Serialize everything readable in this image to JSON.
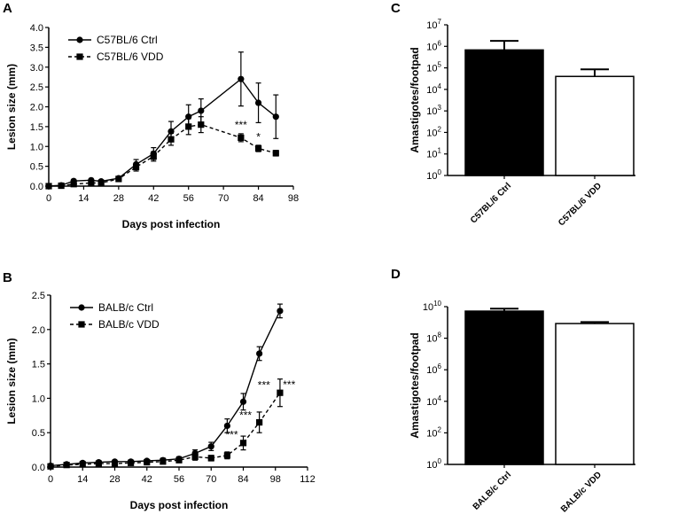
{
  "panels": {
    "A": "A",
    "B": "B",
    "C": "C",
    "D": "D"
  },
  "colors": {
    "axis": "#000000",
    "fill_ctrl": "#000000",
    "fill_vdd": "#ffffff"
  },
  "chart_data": [
    {
      "id": "A",
      "type": "line",
      "xlabel": "Days post infection",
      "ylabel": "Lesion size (mm)",
      "xlim": [
        0,
        98
      ],
      "ylim": [
        0,
        4.0
      ],
      "xticks": [
        0,
        14,
        28,
        42,
        56,
        70,
        84,
        98
      ],
      "yticks": [
        0.0,
        0.5,
        1.0,
        1.5,
        2.0,
        2.5,
        3.0,
        3.5,
        4.0
      ],
      "ytick_labels": [
        "0.0",
        "0.5",
        "1.0",
        "1.5",
        "2.0",
        "2.5",
        "3.0",
        "3.5",
        "4.0"
      ],
      "legend_position": "top-left",
      "series": [
        {
          "name": "C57BL/6 Ctrl",
          "marker": "circle",
          "dash": false,
          "x": [
            0,
            5,
            10,
            17,
            21,
            28,
            35,
            42,
            49,
            56,
            61,
            77,
            84,
            91
          ],
          "y": [
            0.0,
            0.02,
            0.13,
            0.15,
            0.12,
            0.2,
            0.55,
            0.82,
            1.38,
            1.75,
            1.9,
            2.7,
            2.1,
            1.75
          ],
          "err": [
            0.02,
            0.02,
            0.03,
            0.03,
            0.03,
            0.04,
            0.12,
            0.15,
            0.25,
            0.3,
            0.3,
            0.68,
            0.5,
            0.55
          ]
        },
        {
          "name": "C57BL/6 VDD",
          "marker": "square",
          "dash": true,
          "x": [
            0,
            5,
            10,
            17,
            21,
            28,
            35,
            42,
            49,
            56,
            61,
            77,
            84,
            91
          ],
          "y": [
            0.0,
            0.01,
            0.05,
            0.08,
            0.08,
            0.18,
            0.48,
            0.75,
            1.18,
            1.5,
            1.55,
            1.22,
            0.95,
            0.83
          ],
          "err": [
            0.02,
            0.02,
            0.03,
            0.03,
            0.03,
            0.04,
            0.1,
            0.12,
            0.15,
            0.2,
            0.2,
            0.1,
            0.08,
            0.07
          ]
        }
      ],
      "annotations": [
        {
          "text": "***",
          "x": 77,
          "y": 1.45
        },
        {
          "text": "*",
          "x": 84,
          "y": 1.15
        }
      ]
    },
    {
      "id": "B",
      "type": "line",
      "xlabel": "Days post infection",
      "ylabel": "Lesion size (mm)",
      "xlim": [
        0,
        112
      ],
      "ylim": [
        0,
        2.5
      ],
      "xticks": [
        0,
        14,
        28,
        42,
        56,
        70,
        84,
        98,
        112
      ],
      "yticks": [
        0.0,
        0.5,
        1.0,
        1.5,
        2.0,
        2.5
      ],
      "ytick_labels": [
        "0.0",
        "0.5",
        "1.0",
        "1.5",
        "2.0",
        "2.5"
      ],
      "legend_position": "top-left",
      "series": [
        {
          "name": "BALB/c Ctrl",
          "marker": "circle",
          "dash": false,
          "x": [
            0,
            7,
            14,
            21,
            28,
            35,
            42,
            49,
            56,
            63,
            70,
            77,
            84,
            91,
            100
          ],
          "y": [
            0.02,
            0.04,
            0.06,
            0.07,
            0.08,
            0.08,
            0.09,
            0.1,
            0.12,
            0.2,
            0.3,
            0.6,
            0.95,
            1.65,
            2.27
          ],
          "err": [
            0.02,
            0.02,
            0.02,
            0.02,
            0.02,
            0.02,
            0.02,
            0.03,
            0.03,
            0.05,
            0.06,
            0.1,
            0.12,
            0.1,
            0.1
          ]
        },
        {
          "name": "BALB/c VDD",
          "marker": "square",
          "dash": true,
          "x": [
            0,
            7,
            14,
            21,
            28,
            35,
            42,
            49,
            56,
            63,
            70,
            77,
            84,
            91,
            100
          ],
          "y": [
            0.01,
            0.03,
            0.04,
            0.05,
            0.05,
            0.06,
            0.07,
            0.08,
            0.1,
            0.15,
            0.13,
            0.17,
            0.35,
            0.65,
            1.08
          ],
          "err": [
            0.02,
            0.02,
            0.02,
            0.02,
            0.02,
            0.02,
            0.02,
            0.03,
            0.03,
            0.05,
            0.04,
            0.05,
            0.1,
            0.15,
            0.2
          ]
        }
      ],
      "annotations": [
        {
          "text": "***",
          "x": 79,
          "y": 0.42
        },
        {
          "text": "***",
          "x": 85,
          "y": 0.7
        },
        {
          "text": "***",
          "x": 93,
          "y": 1.14
        },
        {
          "text": "***",
          "x": 104,
          "y": 1.15
        }
      ]
    },
    {
      "id": "C",
      "type": "bar",
      "ylabel": "Amastigotes/footpad",
      "yscale": "log",
      "ylim_exp": [
        0,
        7
      ],
      "ytick_base": "10",
      "ytick_exps": [
        "0",
        "1",
        "2",
        "3",
        "4",
        "5",
        "6",
        "7"
      ],
      "categories": [
        "C57BL/6 Ctrl",
        "C57BL/6 VDD"
      ],
      "values": [
        680000,
        40000
      ],
      "err_upper": [
        1800000,
        85000
      ],
      "fills": [
        "#000000",
        "#ffffff"
      ]
    },
    {
      "id": "D",
      "type": "bar",
      "ylabel": "Amastigotes/footpad",
      "yscale": "log",
      "ylim_exp": [
        0,
        10
      ],
      "ytick_base": "10",
      "ytick_exps": [
        "0",
        "2",
        "4",
        "6",
        "8",
        "10"
      ],
      "categories": [
        "BALB/c Ctrl",
        "BALB/c VDD"
      ],
      "values": [
        5200000000,
        850000000
      ],
      "err_upper": [
        7500000000,
        1050000000
      ],
      "fills": [
        "#000000",
        "#ffffff"
      ]
    }
  ]
}
